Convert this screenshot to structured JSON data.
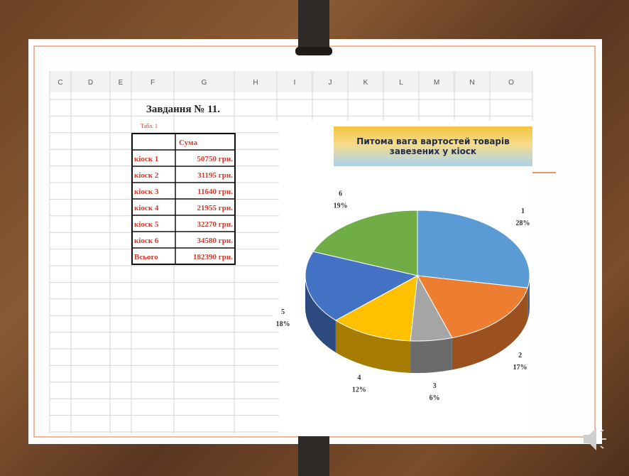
{
  "sheet": {
    "column_letters": [
      "C",
      "D",
      "E",
      "F",
      "G",
      "H",
      "I",
      "J",
      "K",
      "L",
      "M",
      "N",
      "O"
    ]
  },
  "task": {
    "title": "Завдання № 11.",
    "caption": "Табл. 1"
  },
  "table": {
    "column": "Сума",
    "rows": [
      [
        "кіоск 1",
        "50750 грн."
      ],
      [
        "кіоск 2",
        "31195 грн."
      ],
      [
        "кіоск 3",
        "11640 грн."
      ],
      [
        "кіоск 4",
        "21955 грн."
      ],
      [
        "кіоск 5",
        "32270 грн."
      ],
      [
        "кіоск 6",
        "34580 грн."
      ],
      [
        "Всього",
        "182390 грн."
      ]
    ]
  },
  "chart_data": {
    "type": "pie",
    "title": "Питома вага вартостей товарів завезених у кіоск",
    "categories": [
      "1",
      "2",
      "3",
      "4",
      "5",
      "6"
    ],
    "values": [
      28,
      17,
      6,
      12,
      18,
      19
    ],
    "value_labels": [
      "28%",
      "17%",
      "6%",
      "12%",
      "18%",
      "19%"
    ],
    "colors": [
      "#5b9bd5",
      "#ed7d31",
      "#a5a5a5",
      "#ffc000",
      "#4472c4",
      "#70ad47"
    ]
  }
}
